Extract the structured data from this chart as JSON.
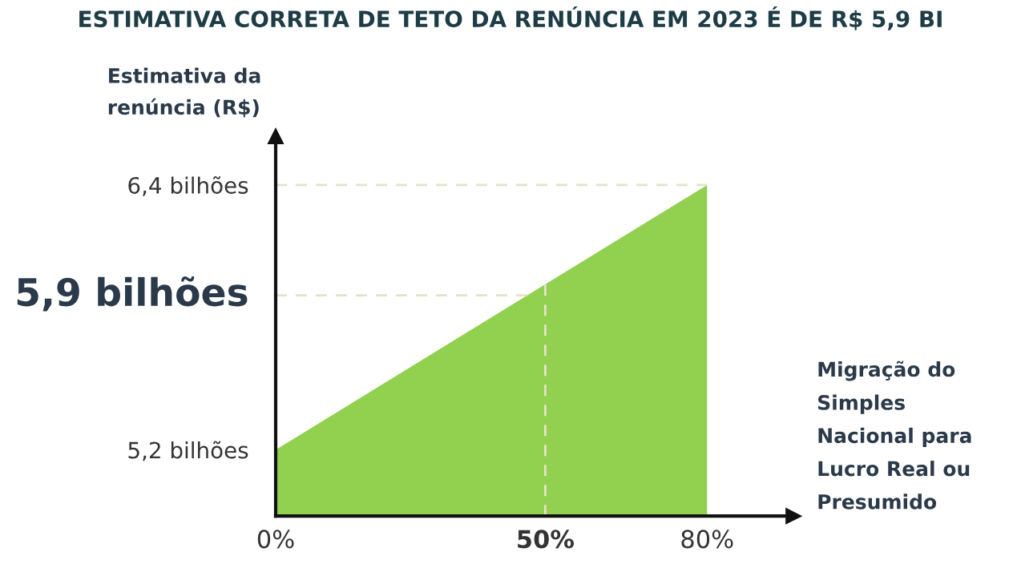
{
  "chart_data": {
    "type": "area",
    "title": "ESTIMATIVA CORRETA DE TETO DA RENÚNCIA EM 2023 É DE R$ 5,9 BI",
    "ylabel": "Estimativa da\nrenúncia (R$)",
    "xlabel": "Migração do\nSimples\nNacional para\nLucro Real ou\nPresumido",
    "x": [
      0,
      80
    ],
    "series": [
      {
        "color": "#92d050",
        "values": [
          5.2,
          6.4
        ]
      }
    ],
    "xlim": [
      0,
      96
    ],
    "ylim": [
      4.9,
      6.62
    ],
    "xticks": [
      {
        "value": 0,
        "label": "0%"
      },
      {
        "value": 50,
        "label": "50%"
      },
      {
        "value": 80,
        "label": "80%"
      }
    ],
    "yticks": [
      {
        "value": 5.2,
        "label": "5,2 bilhões"
      },
      {
        "value": 6.4,
        "label": "6,4 bilhões"
      }
    ],
    "ref_lines": [
      {
        "axis": "y",
        "value": 6.4,
        "color": "#e6e2c8",
        "line_style": "dashed"
      },
      {
        "axis": "y",
        "value": 5.9,
        "label": "5,9 bilhões",
        "color": "#e6e2c8",
        "line_style": "dashed"
      },
      {
        "axis": "x",
        "value": 50,
        "color": "#e6e2c8",
        "line_style": "dashed"
      }
    ],
    "grid": false,
    "legend": false
  }
}
